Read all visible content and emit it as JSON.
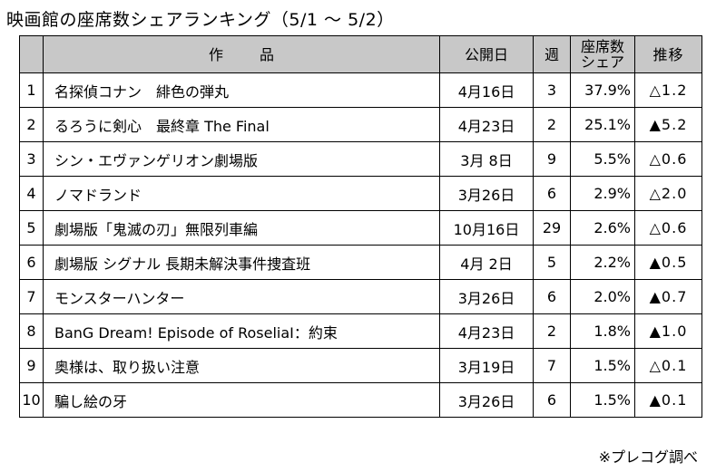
{
  "title": "映画館の座席数シェアランキング（5/1 ～ 5/2）",
  "headers": {
    "rank": "",
    "title": "作品",
    "date": "公開日",
    "week": "週",
    "share": "座席数\nシェア",
    "change": "推移"
  },
  "rows": [
    {
      "rank": "1",
      "title": "名探偵コナン　緋色の弾丸",
      "date": "4月16日",
      "week": "3",
      "share": "37.9%",
      "change": "△1.2"
    },
    {
      "rank": "2",
      "title": "るろうに剣心　最終章 The Final",
      "date": "4月23日",
      "week": "2",
      "share": "25.1%",
      "change": "▲5.2"
    },
    {
      "rank": "3",
      "title": "シン・エヴァンゲリオン劇場版",
      "date": "3月 8日",
      "week": "9",
      "share": "5.5%",
      "change": "△0.6"
    },
    {
      "rank": "4",
      "title": "ノマドランド",
      "date": "3月26日",
      "week": "6",
      "share": "2.9%",
      "change": "△2.0"
    },
    {
      "rank": "5",
      "title": "劇場版「鬼滅の刃」無限列車編",
      "date": "10月16日",
      "week": "29",
      "share": "2.6%",
      "change": "△0.6"
    },
    {
      "rank": "6",
      "title": "劇場版 シグナル 長期未解決事件捜査班",
      "date": "4月 2日",
      "week": "5",
      "share": "2.2%",
      "change": "▲0.5"
    },
    {
      "rank": "7",
      "title": "モンスターハンター",
      "date": "3月26日",
      "week": "6",
      "share": "2.0%",
      "change": "▲0.7"
    },
    {
      "rank": "8",
      "title": "BanG Dream! Episode of RoseliaⅠ：約束",
      "date": "4月23日",
      "week": "2",
      "share": "1.8%",
      "change": "▲1.0"
    },
    {
      "rank": "9",
      "title": "奥様は、取り扱い注意",
      "date": "3月19日",
      "week": "7",
      "share": "1.5%",
      "change": "△0.1"
    },
    {
      "rank": "10",
      "title": "騙し絵の牙",
      "date": "3月26日",
      "week": "6",
      "share": "1.5%",
      "change": "▲0.1"
    }
  ],
  "source": "※プレコグ調べ"
}
